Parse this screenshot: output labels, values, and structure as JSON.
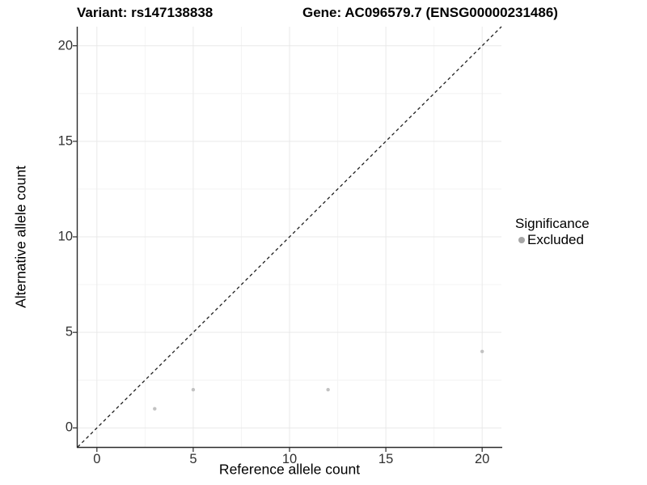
{
  "header": {
    "variant_title": "Variant: rs147138838",
    "gene_title": "Gene: AC096579.7 (ENSG00000231486)"
  },
  "legend": {
    "title": "Significance",
    "items": [
      {
        "label": "Excluded",
        "color": "#a6a6a6"
      }
    ]
  },
  "chart_data": {
    "type": "scatter",
    "title": "",
    "xlabel": "Reference allele count",
    "ylabel": "Alternative allele count",
    "xlim": [
      -1,
      21
    ],
    "ylim": [
      -1,
      21
    ],
    "x_ticks": [
      0,
      5,
      10,
      15,
      20
    ],
    "y_ticks": [
      0,
      5,
      10,
      15,
      20
    ],
    "x_minor_ticks": [
      2.5,
      7.5,
      12.5,
      17.5
    ],
    "y_minor_ticks": [
      2.5,
      7.5,
      12.5,
      17.5
    ],
    "grid": "major+minor",
    "legend_position": "right",
    "series": [
      {
        "name": "Excluded",
        "color": "#c2c2c2",
        "points": [
          [
            3,
            1
          ],
          [
            5,
            2
          ],
          [
            12,
            2
          ],
          [
            20,
            4
          ]
        ]
      }
    ],
    "reference_line": {
      "label": "identity y=x",
      "style": "dashed",
      "color": "#1f1f1f",
      "from": [
        -1,
        -1
      ],
      "to": [
        21,
        21
      ]
    }
  },
  "colors": {
    "background": "#ffffff",
    "grid_major": "#e9e9e9",
    "grid_minor": "#f4f4f4",
    "axis_line": "#2b2b2b",
    "tick_label": "#303030",
    "point": "#c2c2c2"
  }
}
